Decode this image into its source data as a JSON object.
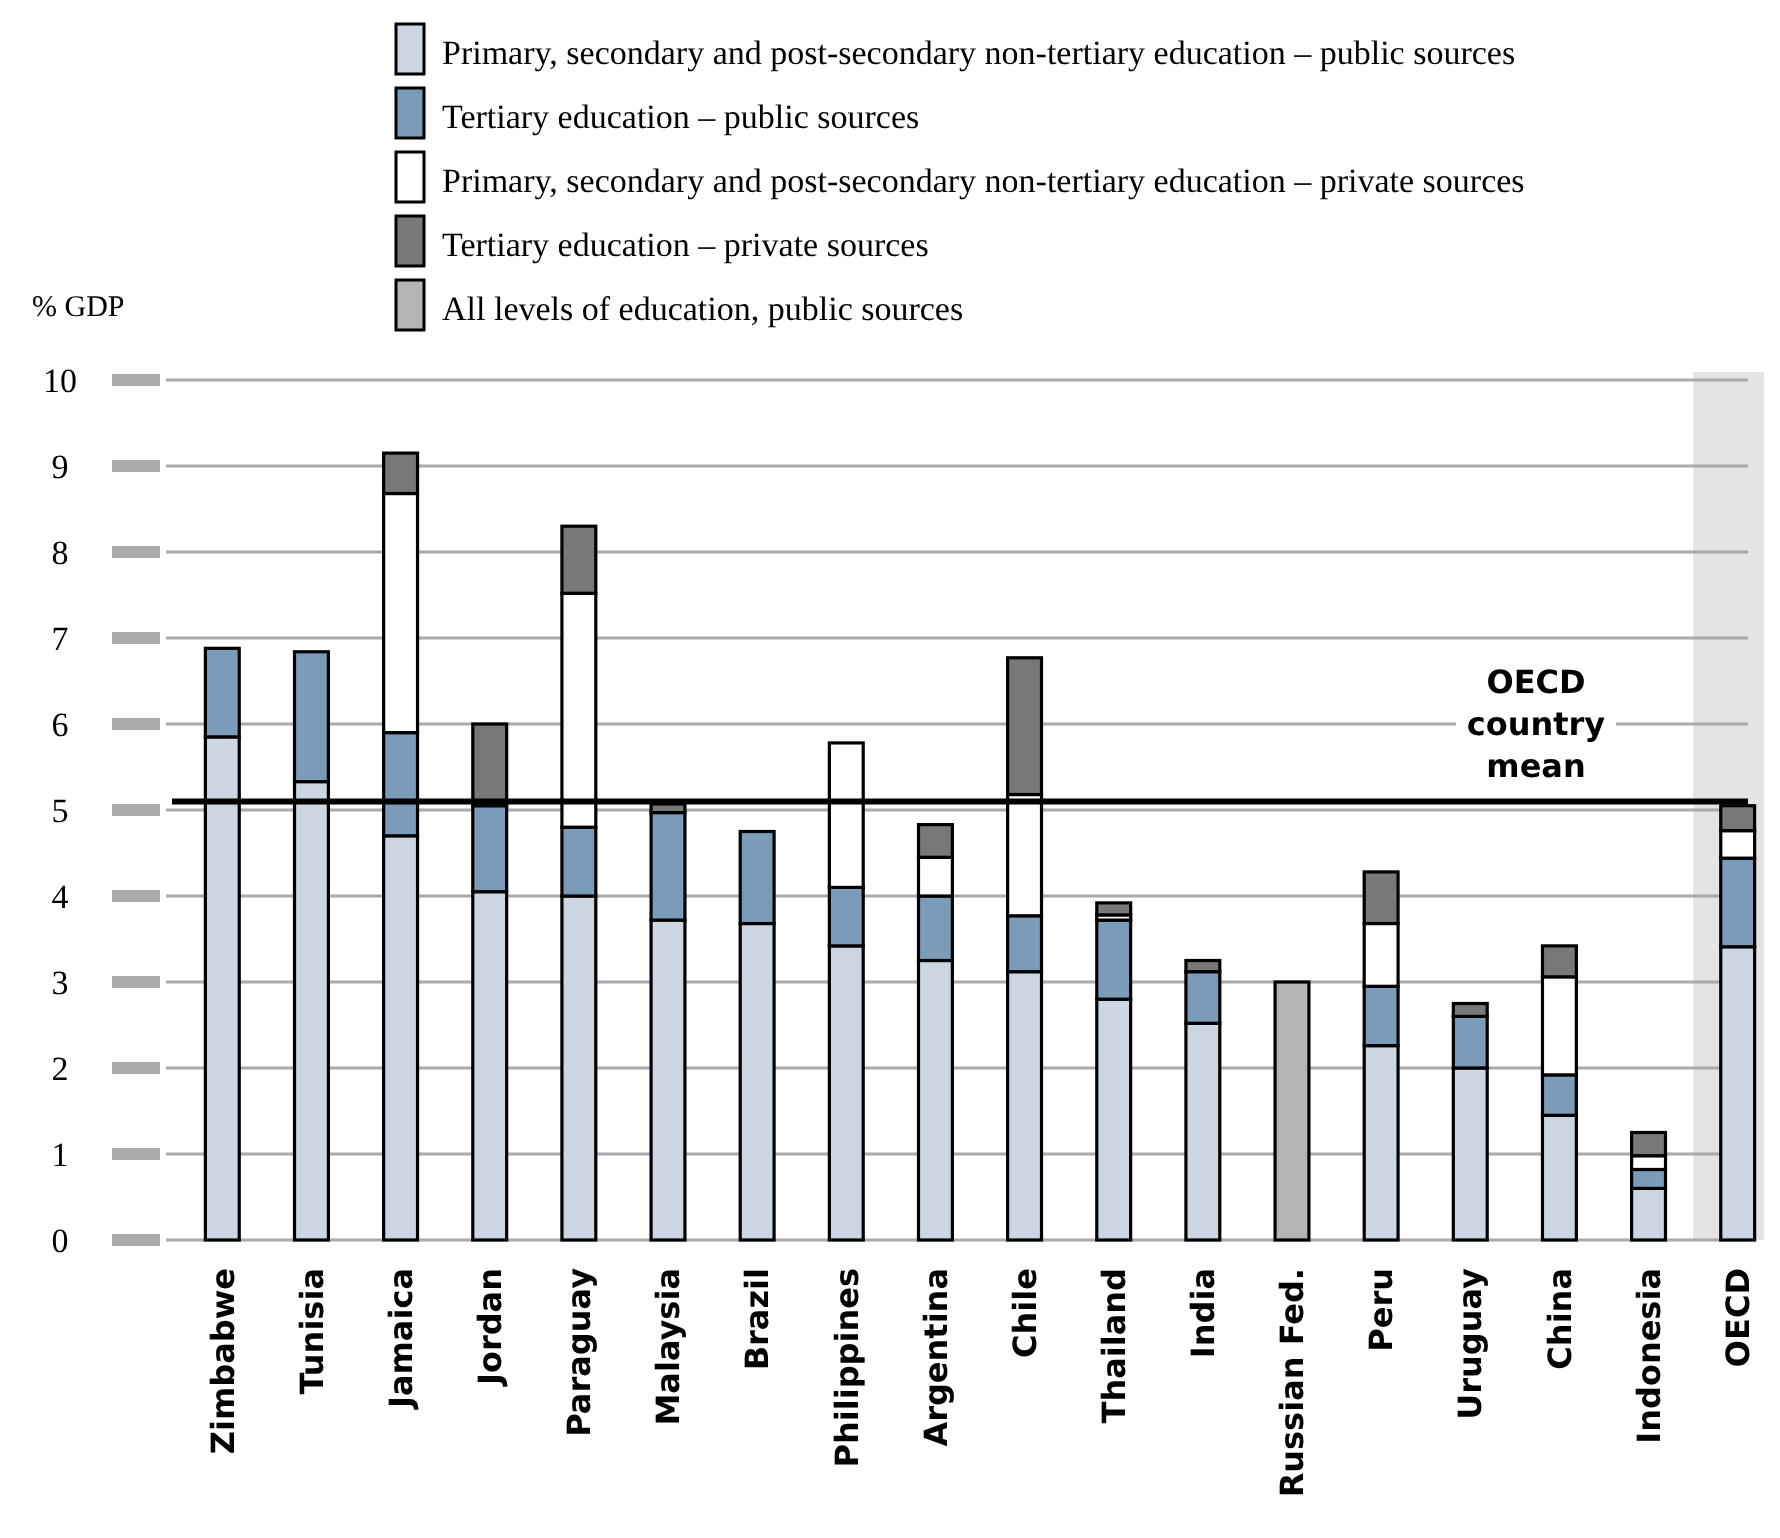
{
  "chart_data": {
    "type": "bar",
    "stacked": true,
    "ylabel": "% GDP",
    "categories": [
      "Zimbabwe",
      "Tunisia",
      "Jamaica",
      "Jordan",
      "Paraguay",
      "Malaysia",
      "Brazil",
      "Philippines",
      "Argentina",
      "Chile",
      "Thailand",
      "India",
      "Russian Fed.",
      "Peru",
      "Uruguay",
      "China",
      "Indonesia",
      "OECD"
    ],
    "series": [
      {
        "name": "Primary, secondary and post-secondary non-tertiary education – public sources",
        "color": "#cbd6e2",
        "values": [
          5.85,
          5.33,
          4.7,
          4.05,
          4.0,
          3.72,
          3.68,
          3.42,
          3.25,
          3.12,
          2.8,
          2.52,
          null,
          2.26,
          2.0,
          1.45,
          0.6,
          3.41
        ]
      },
      {
        "name": "Tertiary education – public sources",
        "color": "#7a9cb8",
        "values": [
          1.03,
          1.51,
          1.2,
          1.0,
          0.8,
          1.25,
          1.07,
          0.68,
          0.75,
          0.65,
          0.92,
          0.6,
          null,
          0.69,
          0.6,
          0.47,
          0.22,
          1.03
        ]
      },
      {
        "name": "Primary, secondary and post-secondary non-tertiary education – private sources",
        "color": "#ffffff",
        "values": [
          null,
          null,
          2.78,
          null,
          2.72,
          0,
          null,
          1.68,
          0.45,
          1.41,
          0.06,
          0,
          null,
          0.73,
          0,
          1.14,
          0.16,
          0.32
        ]
      },
      {
        "name": "Tertiary education – private sources",
        "color": "#787878",
        "values": [
          null,
          null,
          0.47,
          0.95,
          0.78,
          0.1,
          null,
          null,
          0.38,
          1.59,
          0.14,
          0.13,
          null,
          0.6,
          0.15,
          0.36,
          0.27,
          0.29
        ]
      },
      {
        "name": "All levels of education, public sources",
        "color": "#b4b4b4",
        "values": [
          null,
          null,
          null,
          null,
          null,
          null,
          null,
          null,
          null,
          null,
          null,
          null,
          3.0,
          null,
          null,
          null,
          null,
          null
        ]
      }
    ],
    "ylim": [
      0,
      10
    ],
    "yticks": [
      0,
      1,
      2,
      3,
      4,
      5,
      6,
      7,
      8,
      9,
      10
    ],
    "grid": "y",
    "legend": "top",
    "ref_lines": [
      {
        "axis": "y",
        "value": 5.1,
        "label": "OECD country mean",
        "color": "#000000"
      }
    ],
    "bands": [
      {
        "axis": "x",
        "from": "OECD",
        "to": "OECD",
        "color": "#e4e4e4"
      }
    ]
  }
}
